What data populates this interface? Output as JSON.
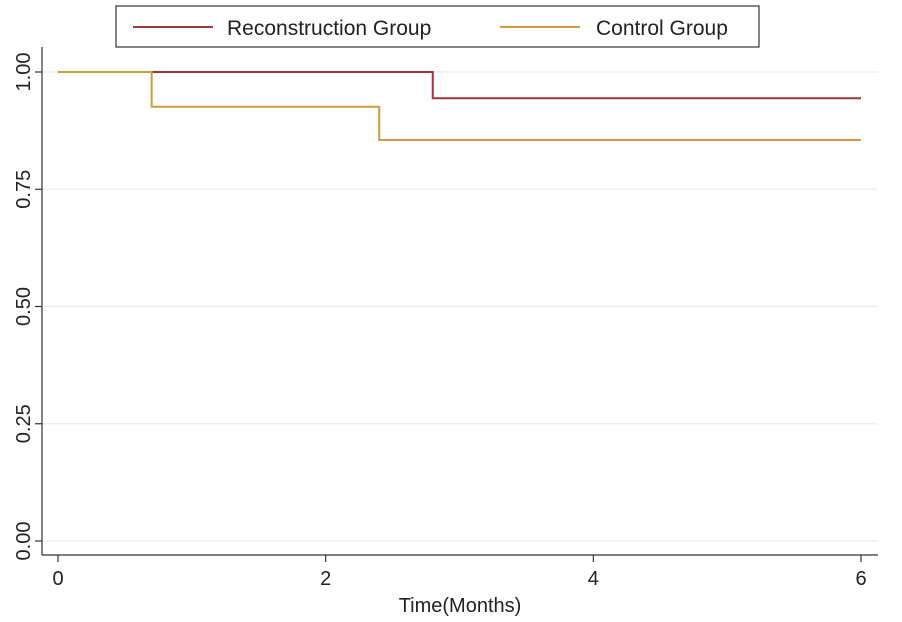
{
  "chart_data": {
    "type": "line",
    "title": "",
    "xlabel": "Time(Months)",
    "ylabel": "",
    "xlim": [
      0,
      6
    ],
    "ylim": [
      0,
      1
    ],
    "xticks": [
      0,
      2,
      4,
      6
    ],
    "yticks": [
      0.0,
      0.25,
      0.5,
      0.75,
      1.0
    ],
    "ytick_labels": [
      "0.00",
      "0.25",
      "0.50",
      "0.75",
      "1.00"
    ],
    "grid": true,
    "legend_position": "top",
    "step": true,
    "series": [
      {
        "name": "Reconstruction Group",
        "color": "#a0353a",
        "x": [
          0,
          2.8,
          6
        ],
        "y": [
          1.0,
          0.944,
          0.944
        ]
      },
      {
        "name": "Control Group",
        "color": "#d39a3d",
        "x": [
          0,
          0.7,
          2.4,
          6
        ],
        "y": [
          1.0,
          0.926,
          0.855,
          0.855
        ]
      }
    ]
  }
}
